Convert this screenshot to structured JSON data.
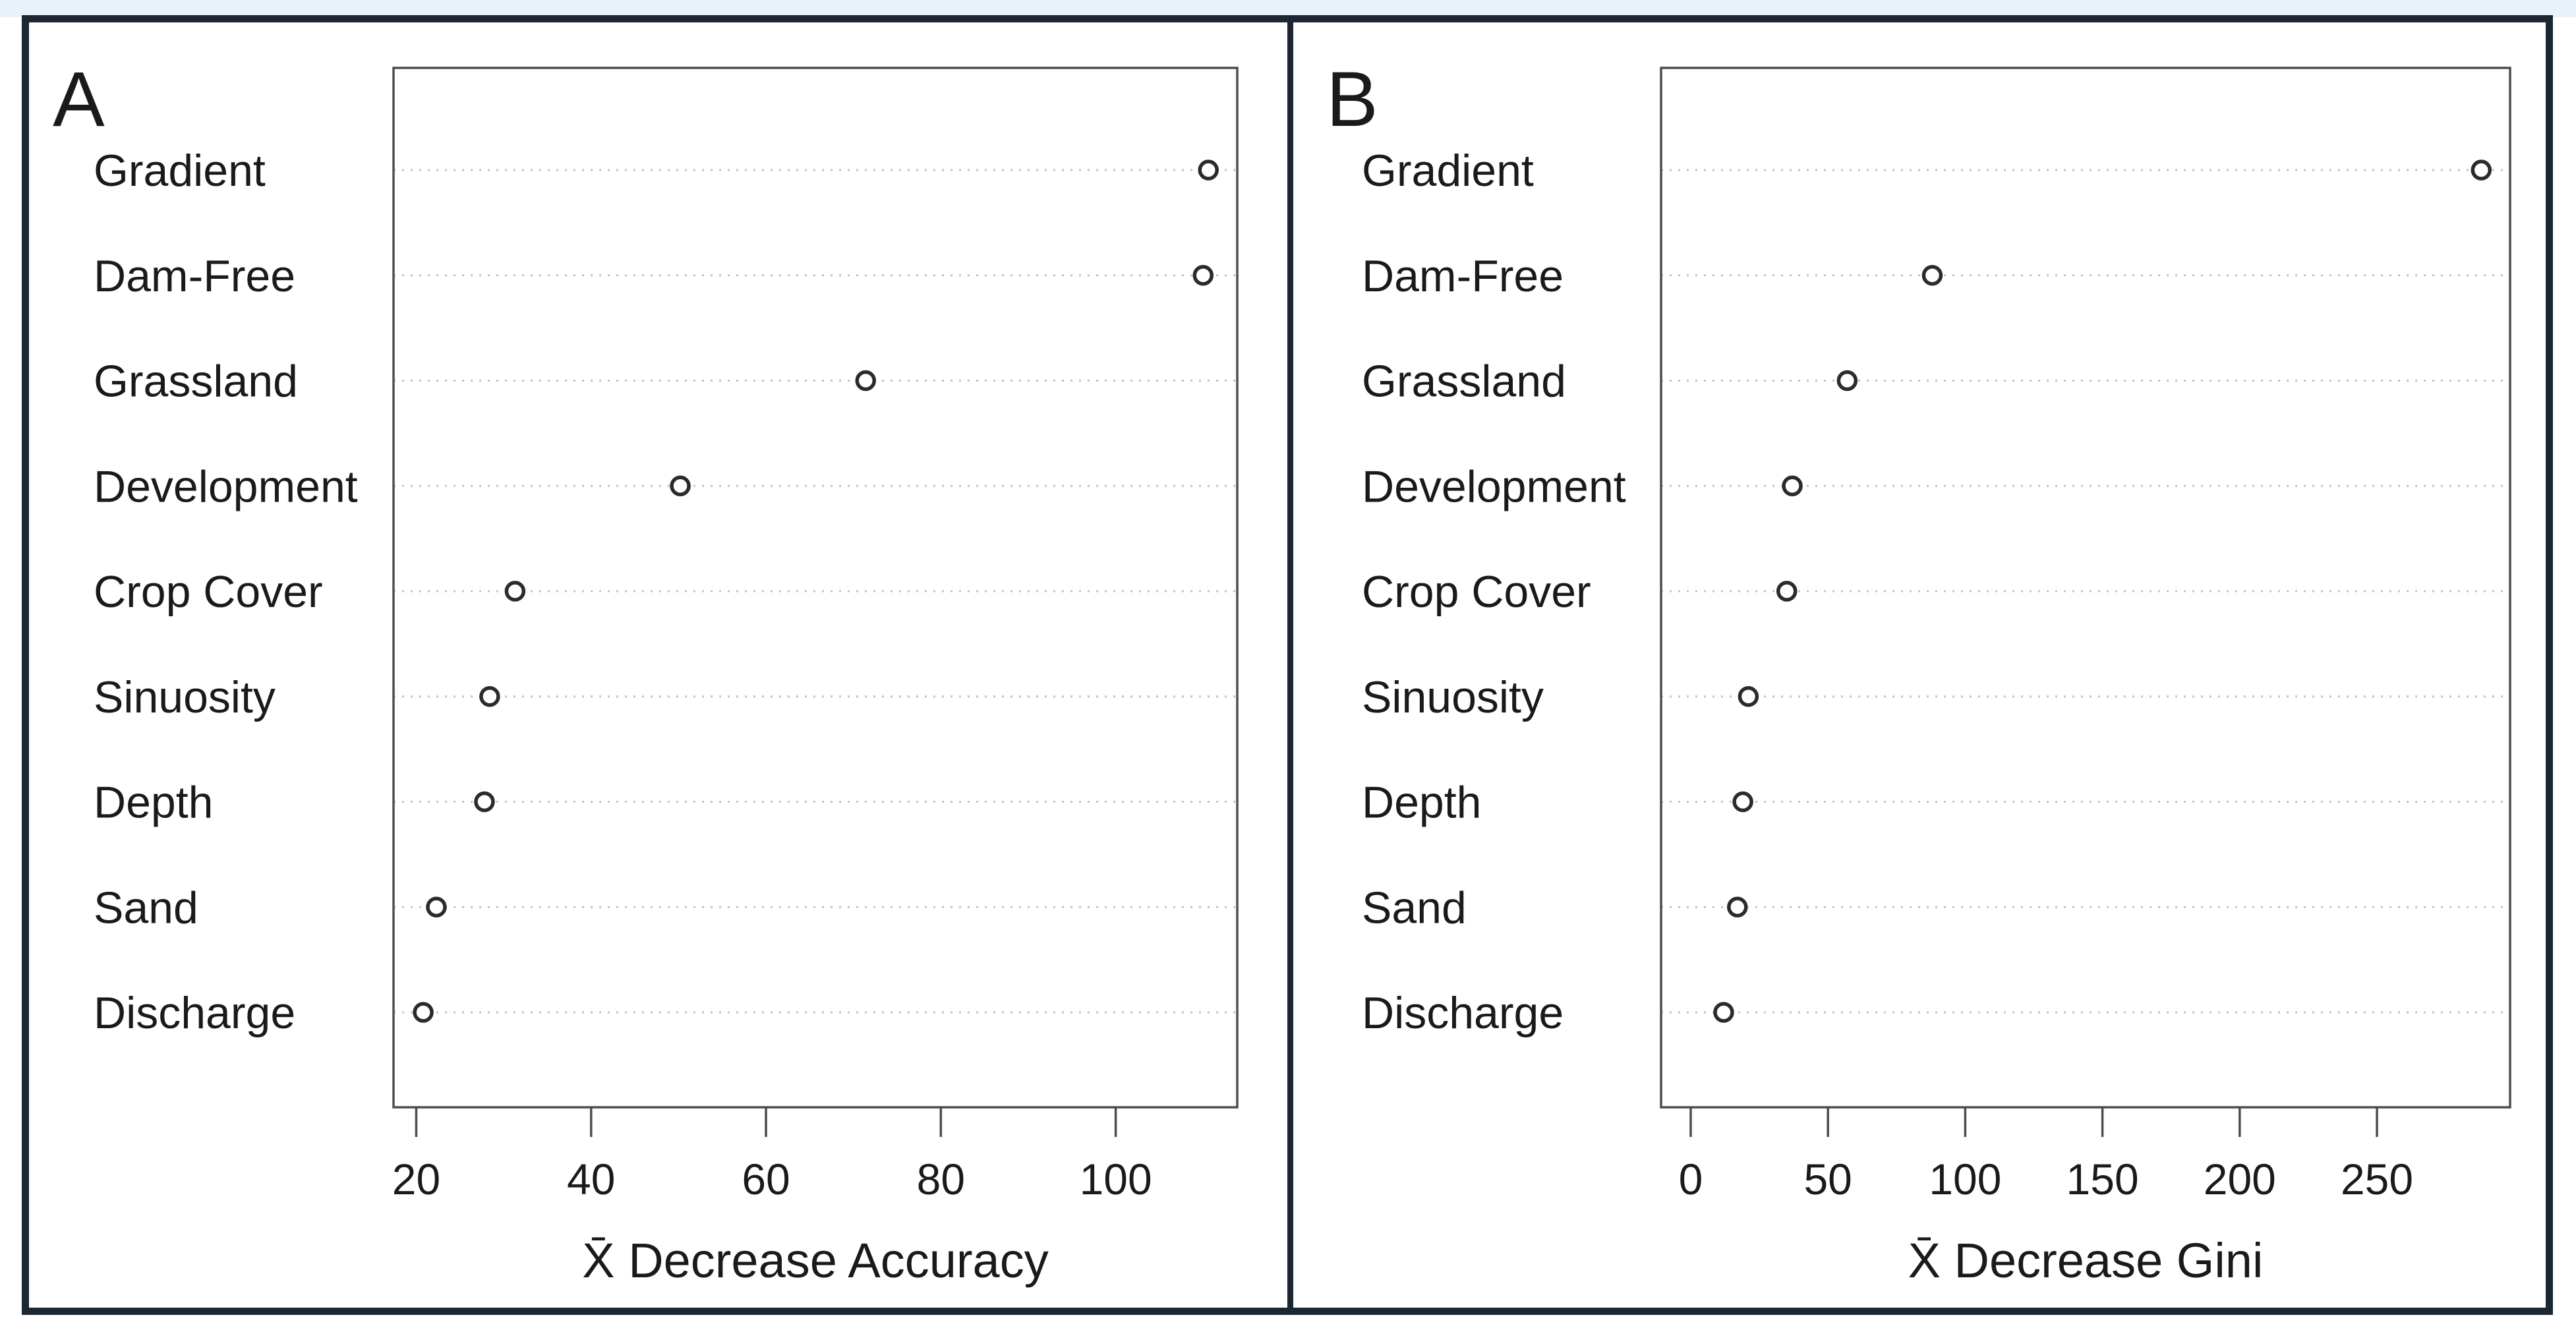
{
  "chart_data": [
    {
      "type": "scatter",
      "subtype": "dot_plot",
      "panel_label": "A",
      "title": "",
      "xlabel": "X̄ Decrease Accuracy",
      "ylabel": "",
      "categories": [
        "Gradient",
        "Dam-Free",
        "Grassland",
        "Development",
        "Crop Cover",
        "Sinuosity",
        "Depth",
        "Sand",
        "Discharge"
      ],
      "values": [
        110.6,
        110.0,
        71.4,
        50.2,
        31.3,
        28.4,
        27.8,
        22.3,
        20.8
      ],
      "xlim": [
        17.4,
        113.9
      ],
      "xticks": [
        20,
        40,
        60,
        80,
        100
      ],
      "grid": "horizontal-dotted",
      "marker": "open-circle",
      "legend": "none"
    },
    {
      "type": "scatter",
      "subtype": "dot_plot",
      "panel_label": "B",
      "title": "",
      "xlabel": "X̄ Decrease Gini",
      "ylabel": "",
      "categories": [
        "Gradient",
        "Dam-Free",
        "Grassland",
        "Development",
        "Crop Cover",
        "Sinuosity",
        "Depth",
        "Sand",
        "Discharge"
      ],
      "values": [
        288,
        88,
        57,
        37,
        35,
        21,
        19,
        17,
        12
      ],
      "xlim": [
        -10.8,
        298.5
      ],
      "xticks": [
        0,
        50,
        100,
        150,
        200,
        250
      ],
      "grid": "horizontal-dotted",
      "marker": "open-circle",
      "legend": "none"
    }
  ],
  "colors": {
    "frame": "#1c2733",
    "plot_border": "#4d4d4d",
    "gridline": "#c2c2c2",
    "point_stroke": "#2b2b2b",
    "text": "#1a1a1a",
    "top_strip": "#e9f2f8",
    "background": "#ffffff"
  }
}
